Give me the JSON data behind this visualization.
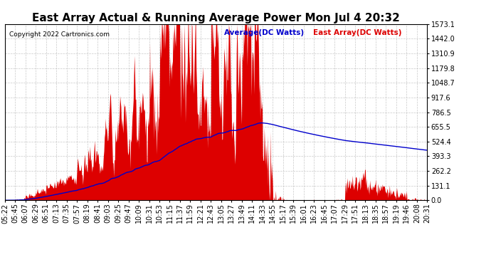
{
  "title": "East Array Actual & Running Average Power Mon Jul 4 20:32",
  "copyright": "Copyright 2022 Cartronics.com",
  "legend_average": "Average(DC Watts)",
  "legend_east": "East Array(DC Watts)",
  "ymax": 1573.1,
  "ymin": 0.0,
  "yticks": [
    0.0,
    131.1,
    262.2,
    393.3,
    524.4,
    655.5,
    786.5,
    917.6,
    1048.7,
    1179.8,
    1310.9,
    1442.0,
    1573.1
  ],
  "background_color": "#ffffff",
  "grid_color": "#bbbbbb",
  "east_array_color": "#dd0000",
  "average_color": "#0000cc",
  "title_fontsize": 11,
  "tick_label_fontsize": 7,
  "xtick_labels": [
    "05:22",
    "05:45",
    "06:07",
    "06:29",
    "06:51",
    "07:13",
    "07:35",
    "07:57",
    "08:19",
    "08:41",
    "09:03",
    "09:25",
    "09:47",
    "10:09",
    "10:31",
    "10:53",
    "11:15",
    "11:37",
    "11:59",
    "12:21",
    "12:43",
    "13:05",
    "13:27",
    "13:49",
    "14:11",
    "14:33",
    "14:55",
    "15:17",
    "15:39",
    "16:01",
    "16:23",
    "16:45",
    "17:07",
    "17:29",
    "17:51",
    "18:13",
    "18:35",
    "18:57",
    "19:19",
    "19:46",
    "20:08",
    "20:31"
  ]
}
